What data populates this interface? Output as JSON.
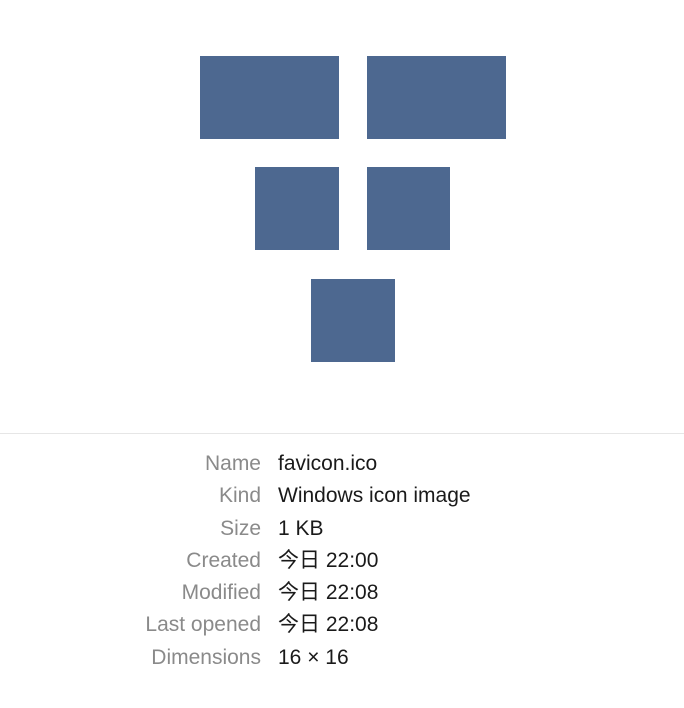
{
  "preview": {
    "icon": "favicon-grid-icon",
    "block_color": "#4d6890"
  },
  "info": {
    "rows": [
      {
        "label": "Name",
        "value": "favicon.ico"
      },
      {
        "label": "Kind",
        "value": "Windows icon image"
      },
      {
        "label": "Size",
        "value": "1 KB"
      },
      {
        "label": "Created",
        "value": "今日 22:00"
      },
      {
        "label": "Modified",
        "value": "今日 22:08"
      },
      {
        "label": "Last opened",
        "value": "今日 22:08"
      },
      {
        "label": "Dimensions",
        "value": "16 × 16"
      }
    ]
  }
}
